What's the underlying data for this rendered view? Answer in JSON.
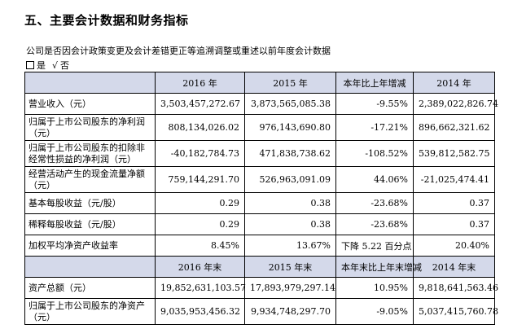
{
  "section_title": "五、主要会计数据和财务指标",
  "question": "公司是否因会计政策变更及会计差错更正等追溯调整或重述以前年度会计数据",
  "answer": {
    "yes_label": "是",
    "check_mark": "√",
    "no_label": "否"
  },
  "header1": [
    "",
    "2016 年",
    "2015 年",
    "本年比上年增减",
    "2014 年"
  ],
  "rows1": [
    [
      "营业收入（元）",
      "3,503,457,272.67",
      "3,873,565,085.38",
      "-9.55%",
      "2,389,022,826.74"
    ],
    [
      "归属于上市公司股东的净利润（元）",
      "808,134,026.02",
      "976,143,690.80",
      "-17.21%",
      "896,662,321.62"
    ],
    [
      "归属于上市公司股东的扣除非经常性损益的净利润（元）",
      "-40,182,784.73",
      "471,838,738.62",
      "-108.52%",
      "539,812,582.75"
    ],
    [
      "经营活动产生的现金流量净额（元）",
      "759,144,291.70",
      "526,963,091.09",
      "44.06%",
      "-21,025,474.41"
    ],
    [
      "基本每股收益（元/股）",
      "0.29",
      "0.38",
      "-23.68%",
      "0.37"
    ],
    [
      "稀释每股收益（元/股）",
      "0.29",
      "0.38",
      "-23.68%",
      "0.37"
    ],
    [
      "加权平均净资产收益率",
      "8.45%",
      "13.67%",
      "下降 5.22 百分点",
      "20.40%"
    ]
  ],
  "header2": [
    "",
    "2016 年末",
    "2015 年末",
    "本年末比上年末增减",
    "2014 年末"
  ],
  "rows2": [
    [
      "资产总额（元）",
      "19,852,631,103.57",
      "17,893,979,297.14",
      "10.95%",
      "9,818,641,563.46"
    ],
    [
      "归属于上市公司股东的净资产（元）",
      "9,035,953,456.32",
      "9,934,748,297.70",
      "-9.05%",
      "5,037,415,760.78"
    ]
  ]
}
